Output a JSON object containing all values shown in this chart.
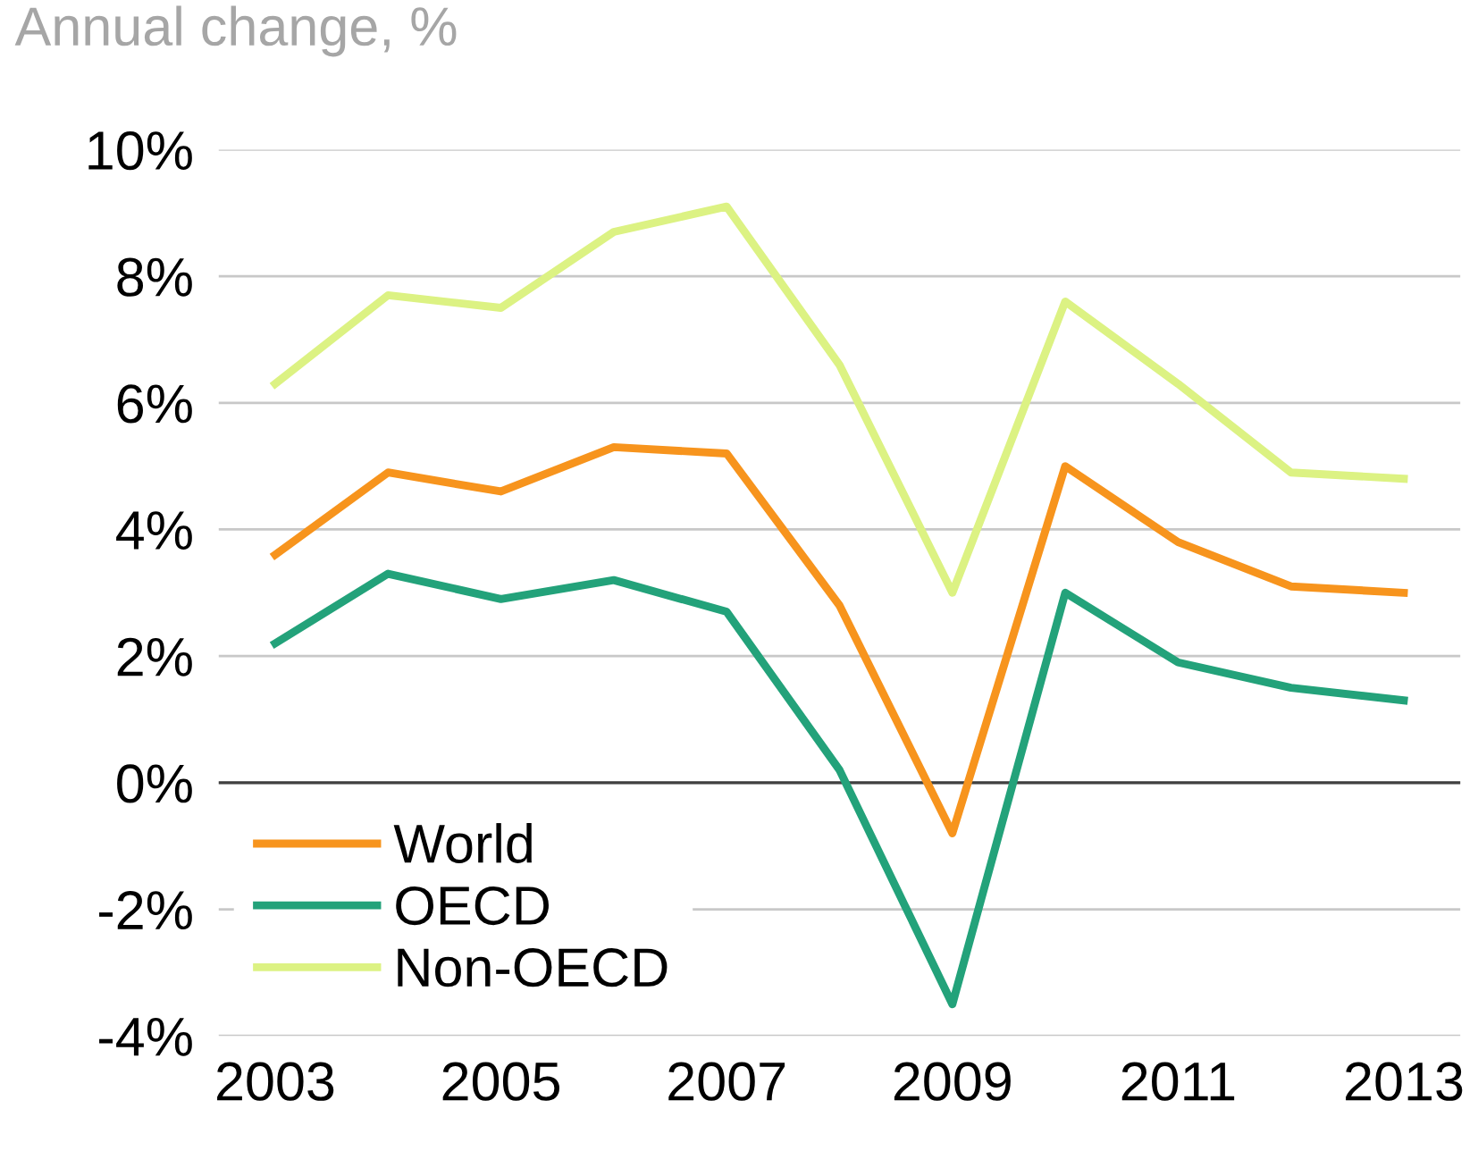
{
  "chart_data": {
    "type": "line",
    "title": "Annual change, %",
    "x": [
      2003,
      2004,
      2005,
      2006,
      2007,
      2008,
      2009,
      2010,
      2011,
      2012,
      2013
    ],
    "series": [
      {
        "name": "World",
        "color": "#f7941d",
        "values": [
          3.6,
          4.9,
          4.6,
          5.3,
          5.2,
          2.8,
          -0.8,
          5.0,
          3.8,
          3.1,
          3.0
        ]
      },
      {
        "name": "OECD",
        "color": "#23a27a",
        "values": [
          2.2,
          3.3,
          2.9,
          3.2,
          2.7,
          0.2,
          -3.5,
          3.0,
          1.9,
          1.5,
          1.3
        ]
      },
      {
        "name": "Non-OECD",
        "color": "#dcf283",
        "values": [
          6.3,
          7.7,
          7.5,
          8.7,
          9.1,
          6.6,
          3.0,
          7.6,
          6.3,
          4.9,
          4.8
        ]
      }
    ],
    "xlim": [
      2002.5,
      2013.5
    ],
    "xticks": [
      2003,
      2005,
      2007,
      2009,
      2011,
      2013
    ],
    "ylim": [
      -4,
      10
    ],
    "yticks": [
      {
        "value": -4,
        "label": "-4%"
      },
      {
        "value": -2,
        "label": "-2%"
      },
      {
        "value": 0,
        "label": "0%"
      },
      {
        "value": 2,
        "label": "2%"
      },
      {
        "value": 4,
        "label": "4%"
      },
      {
        "value": 6,
        "label": "6%"
      },
      {
        "value": 8,
        "label": "8%"
      },
      {
        "value": 10,
        "label": "10%"
      }
    ],
    "ref_lines": [
      {
        "axis": "y",
        "value": 0,
        "color": "#404040"
      }
    ],
    "grid": "y",
    "legend": "bottom left",
    "marker": "none",
    "line_style": "solid"
  }
}
